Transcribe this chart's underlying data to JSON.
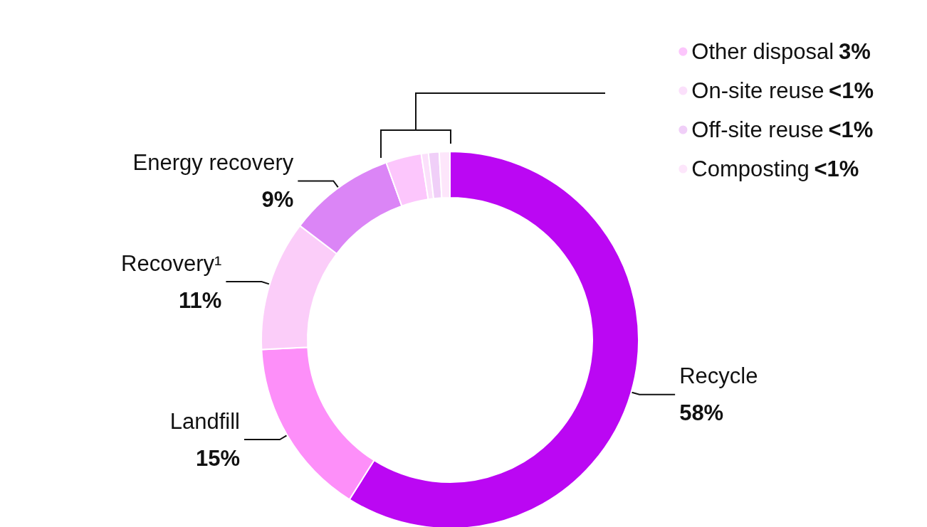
{
  "chart_data": {
    "type": "donut",
    "categories": [
      "Recycle",
      "Landfill",
      "Recovery¹",
      "Energy recovery",
      "Other disposal",
      "On-site reuse",
      "Off-site reuse",
      "Composting"
    ],
    "values": [
      58,
      15,
      11,
      9,
      3,
      0.6,
      0.9,
      0.9
    ],
    "value_labels": [
      "58%",
      "15%",
      "11%",
      "9%",
      "3%",
      "<1%",
      "<1%",
      "<1%"
    ],
    "colors": [
      "#bb07f3",
      "#fd8ff9",
      "#fbcdf9",
      "#db85f6",
      "#fcc6fc",
      "#fbe0fb",
      "#f0cff8",
      "#fde6fb"
    ],
    "legend": "top right"
  }
}
